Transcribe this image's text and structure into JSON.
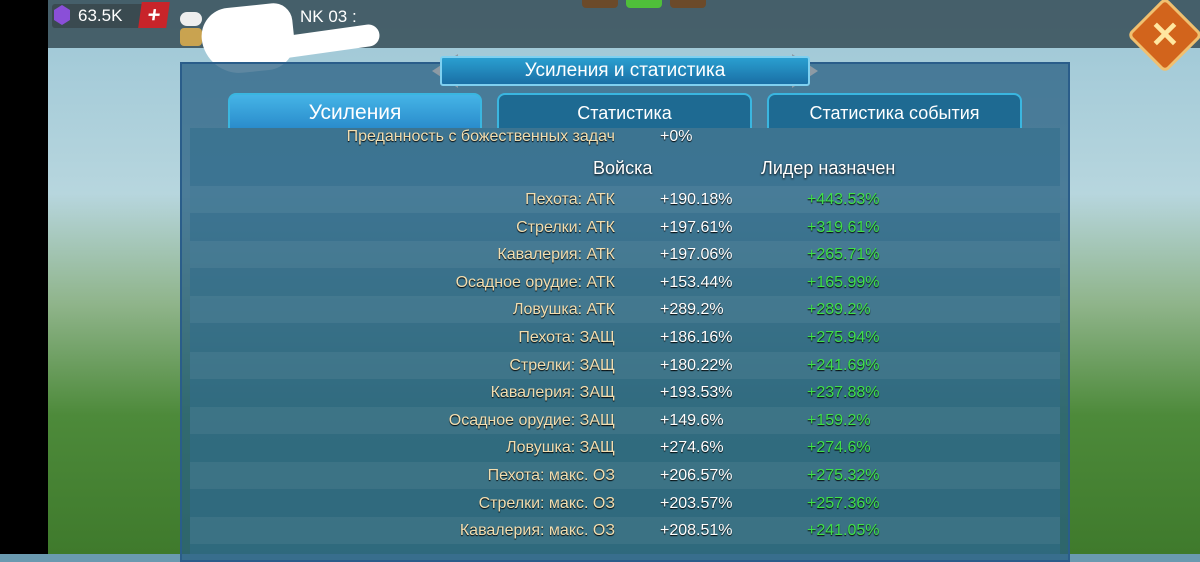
{
  "topbar": {
    "gems": "63.5K",
    "player_name_visible": "NK 03 :"
  },
  "window": {
    "title": "Усиления и статистика"
  },
  "tabs": [
    {
      "label": "Усиления",
      "active": true
    },
    {
      "label": "Статистика",
      "active": false
    },
    {
      "label": "Статистика события",
      "active": false
    }
  ],
  "partial_row": {
    "label": "Преданность с божественных задач",
    "value": "+0%"
  },
  "columns": {
    "troops": "Войска",
    "leader": "Лидер назначен"
  },
  "rows": [
    {
      "label": "Пехота: АТК",
      "troops": "+190.18%",
      "leader": "+443.53%"
    },
    {
      "label": "Стрелки: АТК",
      "troops": "+197.61%",
      "leader": "+319.61%"
    },
    {
      "label": "Кавалерия: АТК",
      "troops": "+197.06%",
      "leader": "+265.71%"
    },
    {
      "label": "Осадное орудие: АТК",
      "troops": "+153.44%",
      "leader": "+165.99%"
    },
    {
      "label": "Ловушка: АТК",
      "troops": "+289.2%",
      "leader": "+289.2%"
    },
    {
      "label": "Пехота: ЗАЩ",
      "troops": "+186.16%",
      "leader": "+275.94%"
    },
    {
      "label": "Стрелки: ЗАЩ",
      "troops": "+180.22%",
      "leader": "+241.69%"
    },
    {
      "label": "Кавалерия: ЗАЩ",
      "troops": "+193.53%",
      "leader": "+237.88%"
    },
    {
      "label": "Осадное орудие: ЗАЩ",
      "troops": "+149.6%",
      "leader": "+159.2%"
    },
    {
      "label": "Ловушка: ЗАЩ",
      "troops": "+274.6%",
      "leader": "+274.6%"
    },
    {
      "label": "Пехота: макс. ОЗ",
      "troops": "+206.57%",
      "leader": "+275.32%"
    },
    {
      "label": "Стрелки: макс. ОЗ",
      "troops": "+203.57%",
      "leader": "+257.36%"
    },
    {
      "label": "Кавалерия: макс. ОЗ",
      "troops": "+208.51%",
      "leader": "+241.05%"
    }
  ],
  "colors": {
    "leader_value": "#3fe04a",
    "label": "#f2deb0",
    "close_button": "#d2641c"
  }
}
